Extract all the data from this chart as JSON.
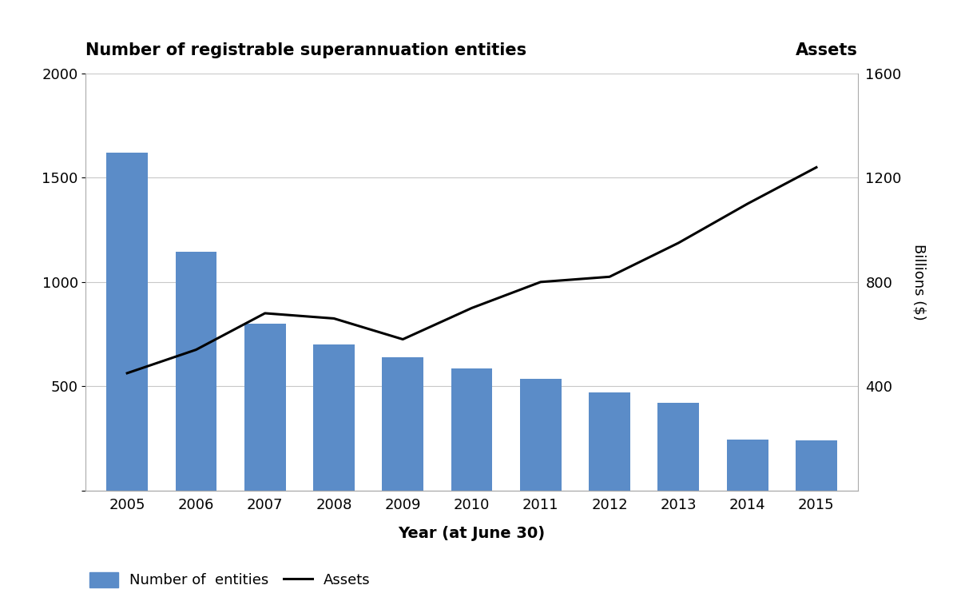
{
  "years": [
    2005,
    2006,
    2007,
    2008,
    2009,
    2010,
    2011,
    2012,
    2013,
    2014,
    2015
  ],
  "entities": [
    1620,
    1145,
    800,
    700,
    640,
    585,
    535,
    470,
    420,
    245,
    240
  ],
  "assets_billions": [
    450,
    540,
    680,
    660,
    580,
    700,
    800,
    820,
    950,
    1100,
    1240
  ],
  "bar_color": "#5b8cc8",
  "line_color": "#000000",
  "title_left": "Number of registrable superannuation entities",
  "title_right": "Assets",
  "xlabel": "Year (at June 30)",
  "ylabel_right": "Billions ($)",
  "left_ylim": [
    0,
    2000
  ],
  "right_ylim": [
    0,
    1600
  ],
  "left_yticks": [
    0,
    500,
    1000,
    1500,
    2000
  ],
  "right_yticks": [
    0,
    400,
    800,
    1200,
    1600
  ],
  "legend_entities": "Number of  entities",
  "legend_assets": "Assets",
  "background_color": "#ffffff",
  "grid_color": "#c8c8c8"
}
